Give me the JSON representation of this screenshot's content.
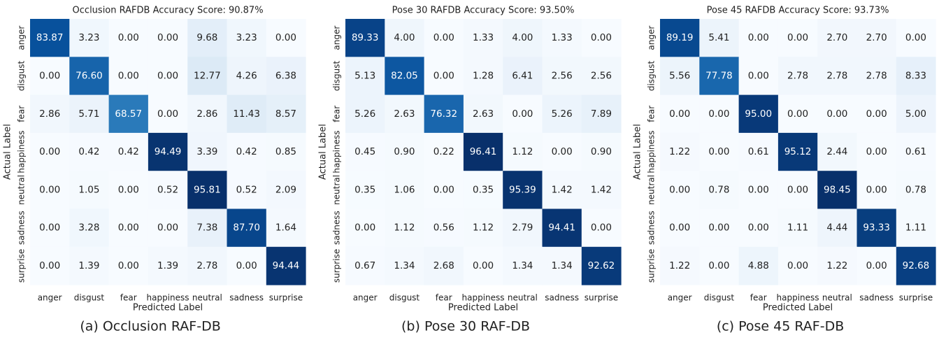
{
  "chart_data": [
    {
      "type": "heatmap",
      "title": "Occlusion RAFDB Accuracy Score: 90.87%",
      "xlabel": "Predicted Label",
      "ylabel": "Actual Label",
      "caption": "(a) Occlusion RAF-DB",
      "colormap": "Blues",
      "categories": [
        "anger",
        "disgust",
        "fear",
        "happiness",
        "neutral",
        "sadness",
        "surprise"
      ],
      "values": [
        [
          83.87,
          3.23,
          0,
          0,
          9.68,
          3.23,
          0
        ],
        [
          0,
          76.6,
          0,
          0,
          12.77,
          4.26,
          6.38
        ],
        [
          2.86,
          5.71,
          68.57,
          0,
          2.86,
          11.43,
          8.57
        ],
        [
          0,
          0.42,
          0.42,
          94.49,
          3.39,
          0.42,
          0.85
        ],
        [
          0,
          1.05,
          0,
          0.52,
          95.81,
          0.52,
          2.09
        ],
        [
          0,
          3.28,
          0,
          0,
          7.38,
          87.7,
          1.64
        ],
        [
          0,
          1.39,
          0,
          1.39,
          2.78,
          0,
          94.44
        ]
      ],
      "value_labels": [
        [
          "83.87",
          "3.23",
          "0.00",
          "0.00",
          "9.68",
          "3.23",
          "0.00"
        ],
        [
          "0.00",
          "76.60",
          "0.00",
          "0.00",
          "12.77",
          "4.26",
          "6.38"
        ],
        [
          "2.86",
          "5.71",
          "68.57",
          "0.00",
          "2.86",
          "11.43",
          "8.57"
        ],
        [
          "0.00",
          "0.42",
          "0.42",
          "94.49",
          "3.39",
          "0.42",
          "0.85"
        ],
        [
          "0.00",
          "1.05",
          "0.00",
          "0.52",
          "95.81",
          "0.52",
          "2.09"
        ],
        [
          "0.00",
          "3.28",
          "0.00",
          "0.00",
          "7.38",
          "87.70",
          "1.64"
        ],
        [
          "0.00",
          "1.39",
          "0.00",
          "1.39",
          "2.78",
          "0.00",
          "94.44"
        ]
      ]
    },
    {
      "type": "heatmap",
      "title": "Pose 30 RAFDB Accuracy Score: 93.50%",
      "xlabel": "Predicted Label",
      "ylabel": "Actual Label",
      "caption": "(b) Pose 30 RAF-DB",
      "colormap": "Blues",
      "categories": [
        "anger",
        "disgust",
        "fear",
        "happiness",
        "neutral",
        "sadness",
        "surprise"
      ],
      "values": [
        [
          89.33,
          4,
          0,
          1.33,
          4,
          1.33,
          0
        ],
        [
          5.13,
          82.05,
          0,
          1.28,
          6.41,
          2.56,
          2.56
        ],
        [
          5.26,
          2.63,
          76.32,
          2.63,
          0,
          5.26,
          7.89
        ],
        [
          0.45,
          0.9,
          0.22,
          96.41,
          1.12,
          0,
          0.9
        ],
        [
          0.35,
          1.06,
          0,
          0.35,
          95.39,
          1.42,
          1.42
        ],
        [
          0,
          1.12,
          0.56,
          1.12,
          2.79,
          94.41,
          0
        ],
        [
          0.67,
          1.34,
          2.68,
          0,
          1.34,
          1.34,
          92.62
        ]
      ],
      "value_labels": [
        [
          "89.33",
          "4.00",
          "0.00",
          "1.33",
          "4.00",
          "1.33",
          "0.00"
        ],
        [
          "5.13",
          "82.05",
          "0.00",
          "1.28",
          "6.41",
          "2.56",
          "2.56"
        ],
        [
          "5.26",
          "2.63",
          "76.32",
          "2.63",
          "0.00",
          "5.26",
          "7.89"
        ],
        [
          "0.45",
          "0.90",
          "0.22",
          "96.41",
          "1.12",
          "0.00",
          "0.90"
        ],
        [
          "0.35",
          "1.06",
          "0.00",
          "0.35",
          "95.39",
          "1.42",
          "1.42"
        ],
        [
          "0.00",
          "1.12",
          "0.56",
          "1.12",
          "2.79",
          "94.41",
          "0.00"
        ],
        [
          "0.67",
          "1.34",
          "2.68",
          "0.00",
          "1.34",
          "1.34",
          "92.62"
        ]
      ]
    },
    {
      "type": "heatmap",
      "title": "Pose 45 RAFDB Accuracy Score: 93.73%",
      "xlabel": "Predicted Label",
      "ylabel": "Actual Label",
      "caption": "(c) Pose 45 RAF-DB",
      "colormap": "Blues",
      "categories": [
        "anger",
        "disgust",
        "fear",
        "happiness",
        "neutral",
        "sadness",
        "surprise"
      ],
      "values": [
        [
          89.19,
          5.41,
          0,
          0,
          2.7,
          2.7,
          0
        ],
        [
          5.56,
          77.78,
          0,
          2.78,
          2.78,
          2.78,
          8.33
        ],
        [
          0,
          0,
          95,
          0,
          0,
          0,
          5
        ],
        [
          1.22,
          0,
          0.61,
          95.12,
          2.44,
          0,
          0.61
        ],
        [
          0,
          0.78,
          0,
          0,
          98.45,
          0,
          0.78
        ],
        [
          0,
          0,
          0,
          1.11,
          4.44,
          93.33,
          1.11
        ],
        [
          1.22,
          0,
          4.88,
          0,
          1.22,
          0,
          92.68
        ]
      ],
      "value_labels": [
        [
          "89.19",
          "5.41",
          "0.00",
          "0.00",
          "2.70",
          "2.70",
          "0.00"
        ],
        [
          "5.56",
          "77.78",
          "0.00",
          "2.78",
          "2.78",
          "2.78",
          "8.33"
        ],
        [
          "0.00",
          "0.00",
          "95.00",
          "0.00",
          "0.00",
          "0.00",
          "5.00"
        ],
        [
          "1.22",
          "0.00",
          "0.61",
          "95.12",
          "2.44",
          "0.00",
          "0.61"
        ],
        [
          "0.00",
          "0.78",
          "0.00",
          "0.00",
          "98.45",
          "0.00",
          "0.78"
        ],
        [
          "0.00",
          "0.00",
          "0.00",
          "1.11",
          "4.44",
          "93.33",
          "1.11"
        ],
        [
          "1.22",
          "0.00",
          "4.88",
          "0.00",
          "1.22",
          "0.00",
          "92.68"
        ]
      ]
    }
  ]
}
